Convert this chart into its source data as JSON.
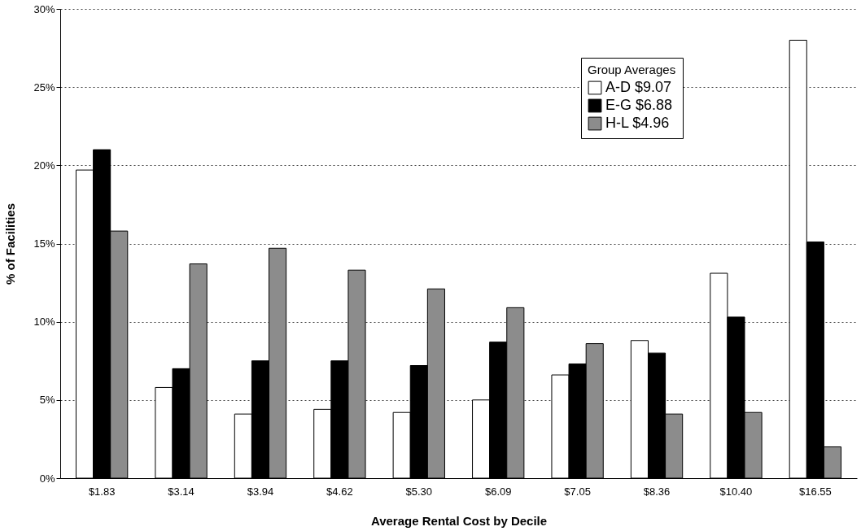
{
  "chart_data": {
    "type": "bar",
    "xlabel": "Average Rental Cost by Decile",
    "ylabel": "% of Facilities",
    "legend_title": "Group Averages",
    "legend": "top right",
    "grid": "y",
    "categories": [
      "$1.83",
      "$3.14",
      "$3.94",
      "$4.62",
      "$5.30",
      "$6.09",
      "$7.05",
      "$8.36",
      "$10.40",
      "$16.55"
    ],
    "series": [
      {
        "name": "A-D $9.07",
        "color": "#ffffff",
        "values": [
          19.7,
          5.8,
          4.1,
          4.4,
          4.2,
          5.0,
          6.6,
          8.8,
          13.1,
          28.0
        ]
      },
      {
        "name": "E-G $6.88",
        "color": "#000000",
        "values": [
          21.0,
          7.0,
          7.5,
          7.5,
          7.2,
          8.7,
          7.3,
          8.0,
          10.3,
          15.1
        ]
      },
      {
        "name": "H-L $4.96",
        "color": "#8c8c8c",
        "values": [
          15.8,
          13.7,
          14.7,
          13.3,
          12.1,
          10.9,
          8.6,
          4.1,
          4.2,
          2.0
        ]
      }
    ],
    "ylim": [
      0,
      30
    ],
    "yticks": [
      {
        "value": 0,
        "label": "0%"
      },
      {
        "value": 5,
        "label": "5%"
      },
      {
        "value": 10,
        "label": "10%"
      },
      {
        "value": 15,
        "label": "15%"
      },
      {
        "value": 20,
        "label": "20%"
      },
      {
        "value": 25,
        "label": "25%"
      },
      {
        "value": 30,
        "label": "30%"
      }
    ]
  }
}
